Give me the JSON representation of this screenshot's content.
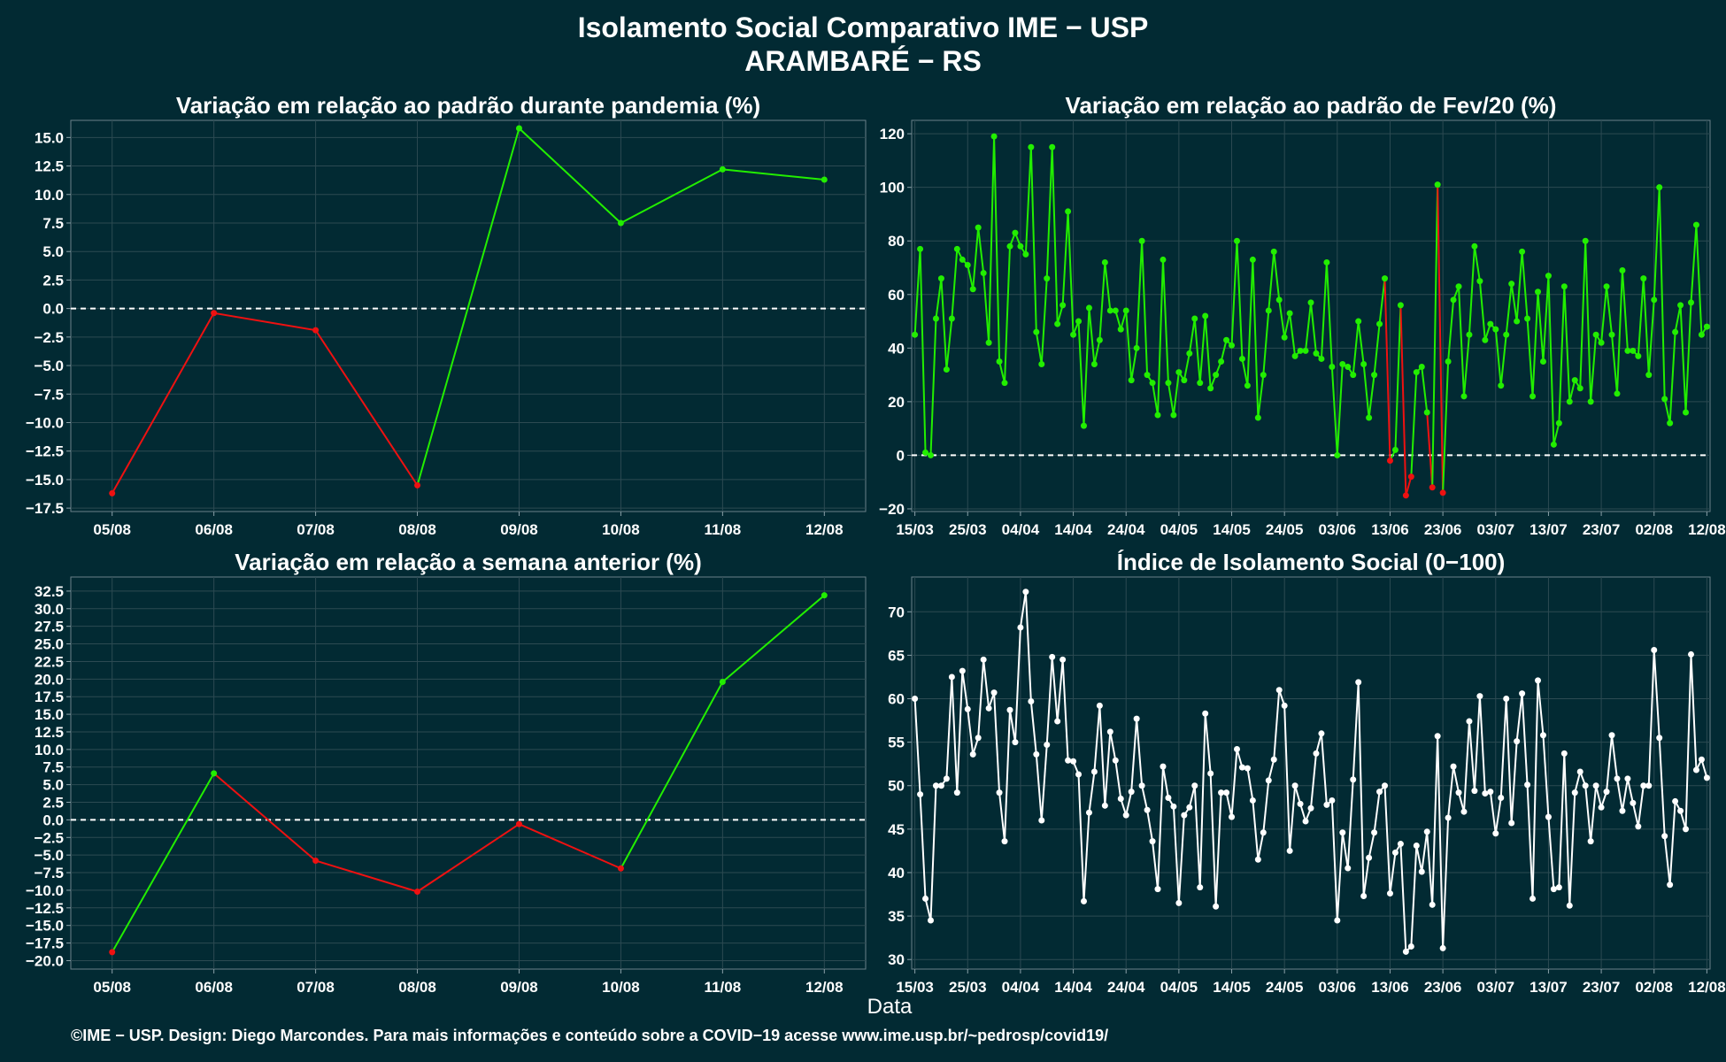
{
  "title_line1": "Isolamento Social Comparativo IME − USP",
  "title_line2": "ARAMBARÉ − RS",
  "x_axis_label": "Data",
  "footer": "©IME − USP. Design: Diego Marcondes. Para mais informações e conteúdo sobre a COVID−19 acesse www.ime.usp.br/~pedrosp/covid19/",
  "colors": {
    "background": "#022a33",
    "panel": "#022a33",
    "grid": "#2c4a52",
    "text": "#ffffff",
    "positive": "#22ee00",
    "negative": "#ee1111",
    "index_line": "#ffffff"
  },
  "chart_data": [
    {
      "id": "pandemia",
      "type": "line",
      "title": "Variação em relação ao padrão durante pandemia (%)",
      "categories": [
        "05/08",
        "06/08",
        "07/08",
        "08/08",
        "09/08",
        "10/08",
        "11/08",
        "12/08"
      ],
      "values": [
        -16.2,
        -0.4,
        -1.9,
        -15.5,
        15.8,
        7.5,
        12.2,
        11.3
      ],
      "ylim": [
        -17.8,
        16.5
      ],
      "yticks": [
        -17.5,
        -15,
        -12.5,
        -10,
        -7.5,
        -5,
        -2.5,
        0,
        2.5,
        5,
        7.5,
        10,
        12.5,
        15
      ],
      "ytick_labels": [
        "−17.5",
        "−15.0",
        "−12.5",
        "−10.0",
        "−7.5",
        "−5.0",
        "−2.5",
        "0.0",
        "2.5",
        "5.0",
        "7.5",
        "10.0",
        "12.5",
        "15.0"
      ],
      "zero_line": true,
      "colored_by_sign": true
    },
    {
      "id": "fev20",
      "type": "line",
      "title": "Variação em relação ao padrão de Fev/20 (%)",
      "x_tick_labels": [
        "15/03",
        "25/03",
        "04/04",
        "14/04",
        "24/04",
        "04/05",
        "14/05",
        "24/05",
        "03/06",
        "13/06",
        "23/06",
        "03/07",
        "13/07",
        "23/07",
        "02/08",
        "12/08"
      ],
      "x_tick_day_index": [
        0,
        10,
        20,
        30,
        40,
        50,
        60,
        70,
        80,
        90,
        100,
        110,
        120,
        130,
        140,
        150
      ],
      "values": [
        45,
        77,
        1,
        0,
        51,
        66,
        32,
        51,
        77,
        73,
        71,
        62,
        85,
        68,
        42,
        119,
        35,
        27,
        78,
        83,
        78,
        75,
        115,
        46,
        34,
        66,
        115,
        49,
        56,
        91,
        45,
        50,
        11,
        55,
        34,
        43,
        72,
        54,
        54,
        47,
        54,
        28,
        40,
        80,
        30,
        27,
        15,
        73,
        27,
        15,
        31,
        28,
        38,
        51,
        27,
        52,
        25,
        30,
        35,
        43,
        41,
        80,
        36,
        26,
        73,
        14,
        30,
        54,
        76,
        58,
        44,
        53,
        37,
        39,
        39,
        57,
        38,
        36,
        72,
        33,
        0,
        34,
        33,
        30,
        50,
        34,
        14,
        30,
        49,
        66,
        -2,
        2,
        56,
        -15,
        -8,
        31,
        33,
        16,
        -12,
        101,
        -14,
        35,
        58,
        63,
        22,
        45,
        78,
        65,
        43,
        49,
        47,
        26,
        45,
        64,
        50,
        76,
        51,
        22,
        61,
        35,
        67,
        4,
        12,
        63,
        20,
        28,
        25,
        80,
        20,
        45,
        42,
        63,
        45,
        23,
        69,
        39,
        39,
        37,
        66,
        30,
        58,
        100,
        21,
        12,
        46,
        56,
        16,
        57,
        86,
        45,
        48
      ],
      "ylim": [
        -21,
        125
      ],
      "yticks": [
        -20,
        0,
        20,
        40,
        60,
        80,
        100,
        120
      ],
      "ytick_labels": [
        "−20",
        "0",
        "20",
        "40",
        "60",
        "80",
        "100",
        "120"
      ],
      "zero_line": true,
      "colored_by_sign": true
    },
    {
      "id": "semana",
      "type": "line",
      "title": "Variação em relação a semana anterior (%)",
      "categories": [
        "05/08",
        "06/08",
        "07/08",
        "08/08",
        "09/08",
        "10/08",
        "11/08",
        "12/08"
      ],
      "values": [
        -18.8,
        6.6,
        -5.8,
        -10.2,
        -0.6,
        -6.9,
        19.6,
        31.9
      ],
      "ylim": [
        -21.2,
        34.5
      ],
      "yticks": [
        -20,
        -17.5,
        -15,
        -12.5,
        -10,
        -7.5,
        -5,
        -2.5,
        0,
        2.5,
        5,
        7.5,
        10,
        12.5,
        15,
        17.5,
        20,
        22.5,
        25,
        27.5,
        30,
        32.5
      ],
      "ytick_labels": [
        "−20.0",
        "−17.5",
        "−15.0",
        "−12.5",
        "−10.0",
        "−7.5",
        "−5.0",
        "−2.5",
        "0.0",
        "2.5",
        "5.0",
        "7.5",
        "10.0",
        "12.5",
        "15.0",
        "17.5",
        "20.0",
        "22.5",
        "25.0",
        "27.5",
        "30.0",
        "32.5"
      ],
      "zero_line": true,
      "colored_by_sign": true
    },
    {
      "id": "indice",
      "type": "line",
      "title": "Índice de Isolamento Social (0−100)",
      "x_tick_labels": [
        "15/03",
        "25/03",
        "04/04",
        "14/04",
        "24/04",
        "04/05",
        "14/05",
        "24/05",
        "03/06",
        "13/06",
        "23/06",
        "03/07",
        "13/07",
        "23/07",
        "02/08",
        "12/08"
      ],
      "x_tick_day_index": [
        0,
        10,
        20,
        30,
        40,
        50,
        60,
        70,
        80,
        90,
        100,
        110,
        120,
        130,
        140,
        150
      ],
      "values": [
        60,
        49,
        37,
        34.5,
        50,
        50,
        50.8,
        62.5,
        49.2,
        63.2,
        58.8,
        53.6,
        55.5,
        64.5,
        58.9,
        60.7,
        49.2,
        43.6,
        58.7,
        55,
        68.2,
        72.3,
        59.7,
        53.6,
        46,
        54.7,
        64.8,
        57.4,
        64.5,
        52.9,
        52.8,
        51.3,
        36.7,
        46.9,
        51.6,
        59.2,
        47.7,
        56.2,
        52.9,
        48.5,
        46.6,
        49.3,
        57.7,
        50,
        47.2,
        43.6,
        38.1,
        52.2,
        48.6,
        47.6,
        36.5,
        46.6,
        47.5,
        50,
        38.3,
        58.3,
        51.4,
        36.1,
        49.2,
        49.2,
        46.4,
        54.2,
        52.1,
        52,
        48.3,
        41.5,
        44.6,
        50.6,
        53,
        61,
        59.2,
        42.5,
        50,
        47.9,
        45.9,
        47.4,
        53.7,
        56,
        47.8,
        48.3,
        34.5,
        44.6,
        40.5,
        50.7,
        61.9,
        37.3,
        41.7,
        44.6,
        49.3,
        50,
        37.6,
        42.3,
        43.3,
        30.9,
        31.5,
        43.1,
        40.1,
        44.7,
        36.3,
        55.7,
        31.3,
        46.3,
        52.2,
        49.2,
        47,
        57.4,
        49.4,
        60.3,
        49.1,
        49.3,
        44.5,
        48.6,
        60,
        45.7,
        55.1,
        60.6,
        50.1,
        37,
        62.1,
        55.8,
        46.4,
        38.1,
        38.3,
        53.7,
        36.2,
        49.2,
        51.6,
        50,
        43.6,
        50,
        47.5,
        49.3,
        55.8,
        50.8,
        47.1,
        50.8,
        48,
        45.3,
        50,
        50,
        65.6,
        55.5,
        44.2,
        38.6,
        48.2,
        47.1,
        45,
        65.1,
        51.8,
        53,
        50.9
      ],
      "ylim": [
        28.9,
        74
      ],
      "yticks": [
        30,
        35,
        40,
        45,
        50,
        55,
        60,
        65,
        70
      ],
      "ytick_labels": [
        "30",
        "35",
        "40",
        "45",
        "50",
        "55",
        "60",
        "65",
        "70"
      ],
      "zero_line": false,
      "colored_by_sign": false
    }
  ]
}
